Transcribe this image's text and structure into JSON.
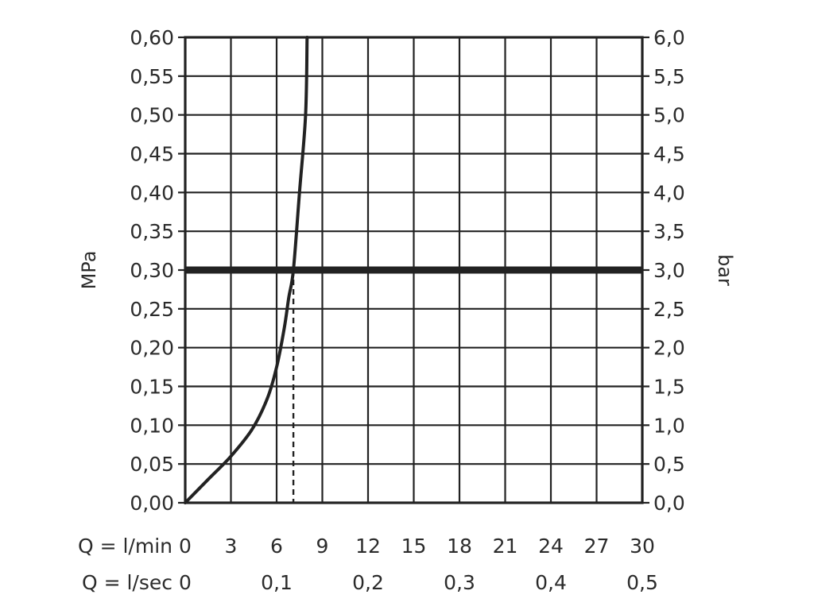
{
  "chart_data": {
    "type": "line",
    "xlabel": "Q = l/min",
    "x2label": "Q = l/sec",
    "ylabel": "MPa",
    "y2label": "bar",
    "xlim": [
      0,
      30
    ],
    "ylim": [
      0,
      0.6
    ],
    "grid": true,
    "x_ticks": [
      "0",
      "3",
      "6",
      "9",
      "12",
      "15",
      "18",
      "21",
      "24",
      "27",
      "30"
    ],
    "x_tick_values": [
      0,
      3,
      6,
      9,
      12,
      15,
      18,
      21,
      24,
      27,
      30
    ],
    "x2_ticks": [
      {
        "value": 0,
        "label": "0"
      },
      {
        "value": 6,
        "label": "0,1"
      },
      {
        "value": 12,
        "label": "0,2"
      },
      {
        "value": 18,
        "label": "0,3"
      },
      {
        "value": 24,
        "label": "0,4"
      },
      {
        "value": 30,
        "label": "0,5"
      }
    ],
    "y_ticks": [
      "0,00",
      "0,05",
      "0,10",
      "0,15",
      "0,20",
      "0,25",
      "0,30",
      "0,35",
      "0,40",
      "0,45",
      "0,50",
      "0,55",
      "0,60"
    ],
    "y_tick_values": [
      0,
      0.05,
      0.1,
      0.15,
      0.2,
      0.25,
      0.3,
      0.35,
      0.4,
      0.45,
      0.5,
      0.55,
      0.6
    ],
    "y2_ticks": [
      "0,0",
      "0,5",
      "1,0",
      "1,5",
      "2,0",
      "2,5",
      "3,0",
      "3,5",
      "4,0",
      "4,5",
      "5,0",
      "5,5",
      "6,0"
    ],
    "series": [
      {
        "values": [
          {
            "x": 0,
            "y": 0
          },
          {
            "x": 1.5,
            "y": 0.03
          },
          {
            "x": 3.0,
            "y": 0.06
          },
          {
            "x": 4.4,
            "y": 0.095
          },
          {
            "x": 5.4,
            "y": 0.135
          },
          {
            "x": 6.0,
            "y": 0.175
          },
          {
            "x": 6.5,
            "y": 0.225
          },
          {
            "x": 6.8,
            "y": 0.265
          },
          {
            "x": 7.1,
            "y": 0.3
          },
          {
            "x": 7.5,
            "y": 0.4
          },
          {
            "x": 7.9,
            "y": 0.5
          },
          {
            "x": 8.0,
            "y": 0.6
          }
        ]
      }
    ],
    "reference_line": {
      "y": 0.3
    },
    "reference_drop": {
      "x": 7.1,
      "y": 0.3
    },
    "colors": {
      "line": "#222222",
      "grid": "#222222",
      "text": "#2b2b2b"
    }
  }
}
